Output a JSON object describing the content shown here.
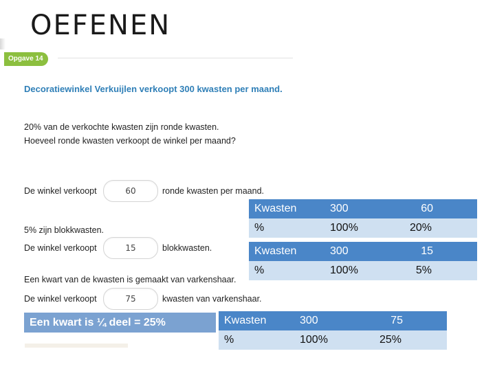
{
  "slide": {
    "title": "OEFENEN"
  },
  "worksheet": {
    "badge": "Opgave 14",
    "heading": "Decoratiewinkel Verkuijlen verkoopt 300 kwasten per maand.",
    "line1": "20% van de verkochte kwasten zijn ronde kwasten.",
    "line2": "Hoeveel ronde kwasten verkoopt de winkel per maand?",
    "row1": {
      "prefix": "De winkel verkoopt",
      "answer": "60",
      "suffix": "ronde kwasten per maand."
    },
    "line3": "5% zijn blokkwasten.",
    "row2": {
      "prefix": "De winkel verkoopt",
      "answer": "15",
      "suffix": "blokkwasten."
    },
    "line4": "Een kwart van de kwasten is gemaakt van varkenshaar.",
    "row3": {
      "prefix": "De winkel verkoopt",
      "answer": "75",
      "suffix": "kwasten van varkenshaar."
    }
  },
  "hint": "Een kwart is ¼ deel = 25%",
  "tables": [
    {
      "row1": [
        "Kwasten",
        "300",
        "60"
      ],
      "row2": [
        "%",
        "100%",
        "20%"
      ]
    },
    {
      "row1": [
        "Kwasten",
        "300",
        "15"
      ],
      "row2": [
        "%",
        "100%",
        "5%"
      ]
    },
    {
      "row1": [
        "Kwasten",
        "300",
        "75"
      ],
      "row2": [
        "%",
        "100%",
        "25%"
      ]
    }
  ],
  "colors": {
    "header_blue": "#4a86c8",
    "light_blue": "#cfe0f1",
    "badge_green": "#8cbf3f",
    "heading_blue": "#2f7fb7"
  }
}
